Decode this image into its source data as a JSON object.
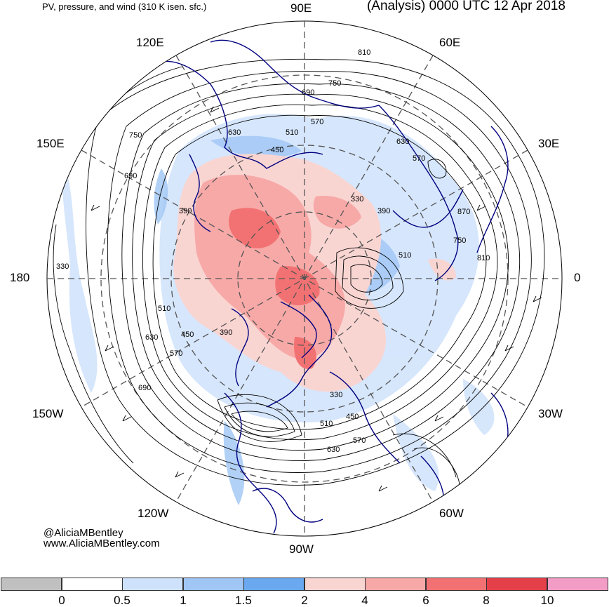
{
  "header": {
    "left_title": "PV, pressure, and wind (310 K isen. sfc.)",
    "right_title": "(Analysis) 0000 UTC 12 Apr 2018"
  },
  "longitude_labels": [
    "90E",
    "60E",
    "30E",
    "0",
    "30W",
    "60W",
    "90W",
    "120W",
    "150W",
    "180",
    "150E",
    "120E"
  ],
  "contour_labels": [
    "810",
    "750",
    "690",
    "630",
    "570",
    "510",
    "450",
    "390",
    "330",
    "750",
    "690",
    "630",
    "570",
    "510",
    "450",
    "390",
    "330",
    "390",
    "870",
    "750",
    "810",
    "690",
    "630",
    "570",
    "510",
    "450",
    "330",
    "630",
    "570",
    "510"
  ],
  "credit": {
    "handle": "@AliciaMBentley",
    "website": "www.AliciaMBentley.com"
  },
  "colorbar": {
    "ticks": [
      "0",
      "0.5",
      "1",
      "1.5",
      "2",
      "4",
      "6",
      "8",
      "10"
    ],
    "colors": [
      "#c0c0c0",
      "#ffffff",
      "#cfe2fb",
      "#9fc6f5",
      "#6aa8ef",
      "#f9d5d2",
      "#f7a9a7",
      "#f27273",
      "#e5404a",
      "#f29cc6"
    ]
  },
  "map_colors": {
    "ocean_bg": "#ffffff",
    "pv_low": "#cfe2fb",
    "pv_mid": "#9fc6f5",
    "pv_high1": "#f9d5d2",
    "pv_high2": "#f27273",
    "coastline": "#000080",
    "contour": "#000000"
  }
}
